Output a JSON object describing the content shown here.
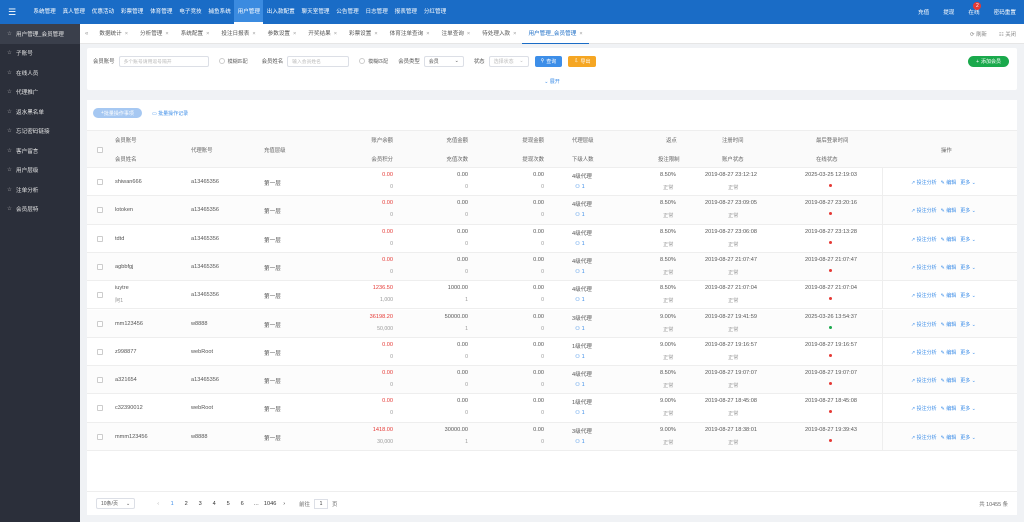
{
  "topbar": {
    "nav": [
      "系统管理",
      "真人管理",
      "优惠活动",
      "彩票管理",
      "体育管理",
      "电子竞技",
      "捕鱼系统",
      "用户管理",
      "出入款配置",
      "聊天室管理",
      "公告管理",
      "日志管理",
      "报表管理",
      "分红管理"
    ],
    "active_index": 7,
    "right": [
      "充值",
      "提现",
      "在线",
      "密码重置"
    ],
    "badge": "2"
  },
  "sidebar": {
    "items": [
      "用户管理_会员管理",
      "子账号",
      "在线人员",
      "代理推广",
      "返水黑名单",
      "忘记密码链接",
      "客户留言",
      "用户层级",
      "注单分析",
      "会员层特"
    ],
    "active_index": 0
  },
  "tabs": {
    "left_arrow": "«",
    "items": [
      "数据统计",
      "分析管理",
      "系统配置",
      "投注日报表",
      "参数设置",
      "开奖结果",
      "彩票设置",
      "体育注单查询",
      "注单查询",
      "待处理入款",
      "用户管理_会员管理"
    ],
    "active_index": 10,
    "right": [
      "刷新",
      "关闭"
    ]
  },
  "filter": {
    "member_label": "会员账号",
    "member_placeholder": "多个账号请用逗号隔开",
    "fuzzy_label": "模糊匹配",
    "name_label": "会员姓名",
    "name_placeholder": "输入会员姓名",
    "fuzzy_label2": "模糊匹配",
    "type_label": "会员类型",
    "type_value": "会员",
    "status_label": "状态",
    "status_placeholder": "选择状态",
    "search_btn": "查询",
    "export_btn": "导出",
    "add_btn": "添加会员",
    "expand": "展开"
  },
  "toolbar": {
    "batch_btn": "批量操作事项",
    "record_btn": "批量操作记录"
  },
  "columns": {
    "member_account": "会员账号",
    "member_name": "会员姓名",
    "agent": "代理账号",
    "level": "充值层级",
    "balance": "账户余额",
    "points": "会员积分",
    "recharge_amount": "充值金额",
    "recharge_count": "充值次数",
    "withdraw_amount": "提现金额",
    "withdraw_count": "提现次数",
    "agent_tier": "代理层级",
    "sub_count": "下级人数",
    "rebate": "返点",
    "bet_limit": "投注限制",
    "register_time": "注册时间",
    "account_status": "账户状态",
    "last_login": "最后登录时间",
    "online_status": "在线状态",
    "ops": "操作"
  },
  "rows": [
    {
      "account": "shiwan666",
      "name": "",
      "agent": "a13465356",
      "level": "第一层",
      "balance": "0.00",
      "points": "0",
      "recharge": "0.00",
      "rcount": "0",
      "withdraw": "0.00",
      "wcount": "0",
      "tier": "4级代理",
      "subs": "1",
      "rebate": "8.50%",
      "limit": "正常",
      "reg": "2019-08-27 23:12:12",
      "status": "正常",
      "login": "2025-03-25 12:19:03",
      "online": "red"
    },
    {
      "account": "lotoken",
      "name": "",
      "agent": "a13465356",
      "level": "第一层",
      "balance": "0.00",
      "points": "0",
      "recharge": "0.00",
      "rcount": "0",
      "withdraw": "0.00",
      "wcount": "0",
      "tier": "4级代理",
      "subs": "1",
      "rebate": "8.50%",
      "limit": "正常",
      "reg": "2019-08-27 23:09:05",
      "status": "正常",
      "login": "2019-08-27 23:20:16",
      "online": "red"
    },
    {
      "account": "tdtd",
      "name": "",
      "agent": "a13465356",
      "level": "第一层",
      "balance": "0.00",
      "points": "0",
      "recharge": "0.00",
      "rcount": "0",
      "withdraw": "0.00",
      "wcount": "0",
      "tier": "4级代理",
      "subs": "1",
      "rebate": "8.50%",
      "limit": "正常",
      "reg": "2019-08-27 23:06:08",
      "status": "正常",
      "login": "2019-08-27 23:13:28",
      "online": "red"
    },
    {
      "account": "agbbfgj",
      "name": "",
      "agent": "a13465356",
      "level": "第一层",
      "balance": "0.00",
      "points": "0",
      "recharge": "0.00",
      "rcount": "0",
      "withdraw": "0.00",
      "wcount": "0",
      "tier": "4级代理",
      "subs": "1",
      "rebate": "8.50%",
      "limit": "正常",
      "reg": "2019-08-27 21:07:47",
      "status": "正常",
      "login": "2019-08-27 21:07:47",
      "online": "red"
    },
    {
      "account": "iuytre",
      "name": "阿1",
      "agent": "a13465356",
      "level": "第一层",
      "balance": "1236.50",
      "points": "1,000",
      "recharge": "1000.00",
      "rcount": "1",
      "withdraw": "0.00",
      "wcount": "0",
      "tier": "4级代理",
      "subs": "1",
      "rebate": "8.50%",
      "limit": "正常",
      "reg": "2019-08-27 21:07:04",
      "status": "正常",
      "login": "2019-08-27 21:07:04",
      "online": "red"
    },
    {
      "account": "mm123456",
      "name": "",
      "agent": "w8888",
      "level": "第一层",
      "balance": "36198.20",
      "points": "50,000",
      "recharge": "50000.00",
      "rcount": "1",
      "withdraw": "0.00",
      "wcount": "0",
      "tier": "3级代理",
      "subs": "1",
      "rebate": "9.00%",
      "limit": "正常",
      "reg": "2019-08-27 19:41:59",
      "status": "正常",
      "login": "2025-03-26 13:54:37",
      "online": "green"
    },
    {
      "account": "z998877",
      "name": "",
      "agent": "webRoot",
      "level": "第一层",
      "balance": "0.00",
      "points": "0",
      "recharge": "0.00",
      "rcount": "0",
      "withdraw": "0.00",
      "wcount": "0",
      "tier": "1级代理",
      "subs": "1",
      "rebate": "9.00%",
      "limit": "正常",
      "reg": "2019-08-27 19:16:57",
      "status": "正常",
      "login": "2019-08-27 19:16:57",
      "online": "red"
    },
    {
      "account": "a321654",
      "name": "",
      "agent": "a13465356",
      "level": "第一层",
      "balance": "0.00",
      "points": "0",
      "recharge": "0.00",
      "rcount": "0",
      "withdraw": "0.00",
      "wcount": "0",
      "tier": "4级代理",
      "subs": "1",
      "rebate": "8.50%",
      "limit": "正常",
      "reg": "2019-08-27 19:07:07",
      "status": "正常",
      "login": "2019-08-27 19:07:07",
      "online": "red"
    },
    {
      "account": "c32390012",
      "name": "",
      "agent": "webRoot",
      "level": "第一层",
      "balance": "0.00",
      "points": "0",
      "recharge": "0.00",
      "rcount": "0",
      "withdraw": "0.00",
      "wcount": "0",
      "tier": "1级代理",
      "subs": "1",
      "rebate": "9.00%",
      "limit": "正常",
      "reg": "2019-08-27 18:45:08",
      "status": "正常",
      "login": "2019-08-27 18:45:08",
      "online": "red"
    },
    {
      "account": "mmm123456",
      "name": "",
      "agent": "w8888",
      "level": "第一层",
      "balance": "1418.00",
      "points": "30,000",
      "recharge": "30000.00",
      "rcount": "1",
      "withdraw": "0.00",
      "wcount": "0",
      "tier": "3级代理",
      "subs": "1",
      "rebate": "9.00%",
      "limit": "正常",
      "reg": "2019-08-27 18:38:01",
      "status": "正常",
      "login": "2019-08-27 19:39:43",
      "online": "red"
    }
  ],
  "row_ops": [
    "投注分析",
    "编辑",
    "更多"
  ],
  "pager": {
    "per_page": "10条/页",
    "prev": "‹",
    "pages": [
      "1",
      "2",
      "3",
      "4",
      "5",
      "6",
      "…",
      "1046"
    ],
    "current": "1",
    "next": "›",
    "goto_label": "前往",
    "goto_value": "1",
    "goto_suffix": "页",
    "total": "共 10455 条"
  },
  "colors": {
    "primary": "#1a6cc6",
    "sidebar": "#2b2f3a",
    "red": "#e53935",
    "green": "#1aa94c",
    "orange": "#f5a623"
  }
}
